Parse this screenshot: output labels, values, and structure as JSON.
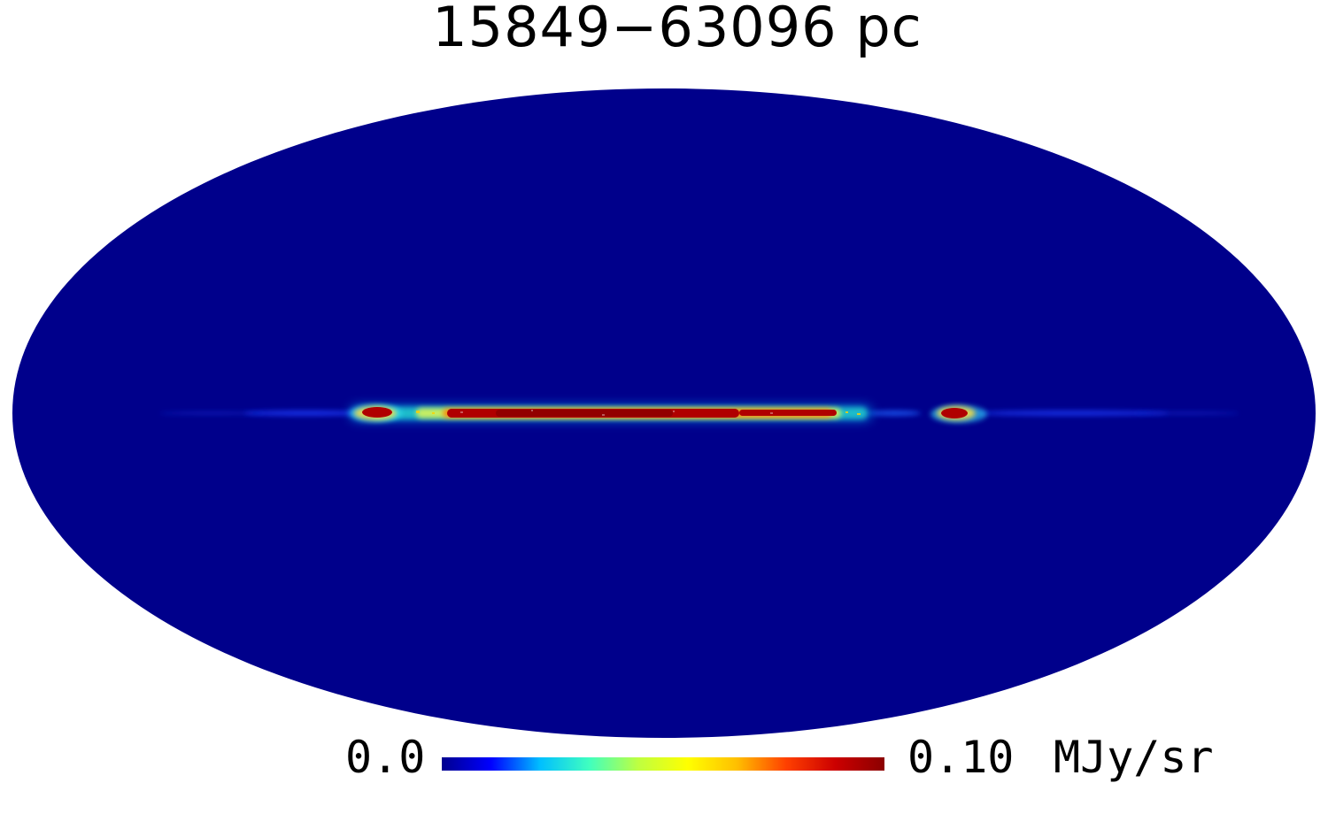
{
  "title": "15849−63096 pc",
  "colorbar": {
    "min_label": "0.0",
    "max_label": "0.10",
    "unit": "MJy/sr",
    "colormap": "jet",
    "stops": [
      "#00008f",
      "#0000ff",
      "#00bfff",
      "#40ffbf",
      "#bfff40",
      "#ffff00",
      "#ffbf00",
      "#ff4000",
      "#cc0000",
      "#8b0000"
    ]
  },
  "map": {
    "projection": "mollweide",
    "background": "#00008b",
    "features": [
      {
        "name": "galactic-plane-emission",
        "level": "high",
        "color": "#a50000"
      },
      {
        "name": "emission-clump-left",
        "level": "high",
        "color": "#a50000"
      },
      {
        "name": "emission-clump-right",
        "level": "high",
        "color": "#a50000"
      },
      {
        "name": "faint-plane-wings",
        "level": "low",
        "color": "#1e3cff"
      }
    ]
  }
}
